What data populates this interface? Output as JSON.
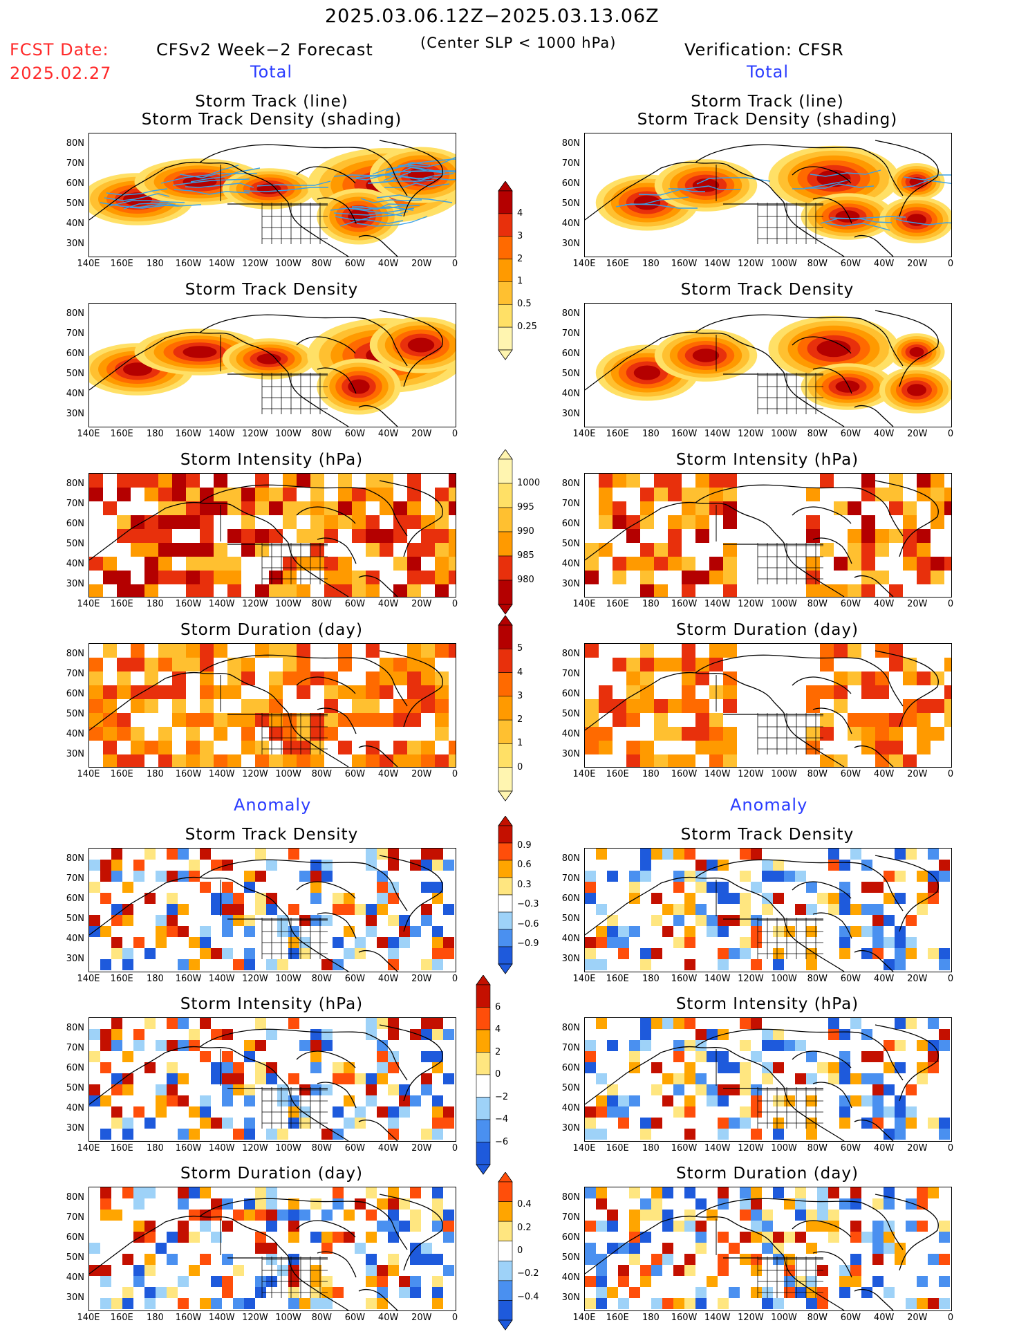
{
  "header": {
    "period": "2025.03.06.12Z−2025.03.13.06Z",
    "fcst_label": "FCST Date:",
    "fcst_date": "2025.02.27",
    "forecast_title": "CFSv2 Week−2 Forecast",
    "condition": "(Center SLP < 1000 hPa)",
    "verification_title": "Verification: CFSR",
    "total_label": "Total",
    "anomaly_label": "Anomaly"
  },
  "panel_titles": {
    "track_line": "Storm Track (line)",
    "track_density_shading": "Storm Track Density (shading)",
    "track_density": "Storm Track Density",
    "intensity": "Storm Intensity (hPa)",
    "duration": "Storm Duration (day)"
  },
  "axes": {
    "lat_ticks": [
      "80N",
      "70N",
      "60N",
      "50N",
      "40N",
      "30N"
    ],
    "lon_ticks": [
      "140E",
      "160E",
      "180",
      "160W",
      "140W",
      "120W",
      "100W",
      "80W",
      "60W",
      "40W",
      "20W",
      "0"
    ]
  },
  "colorbars": {
    "density": [
      "4",
      "3",
      "2",
      "1",
      "0.5",
      "0.25"
    ],
    "intensity": [
      "1000",
      "995",
      "990",
      "985",
      "980"
    ],
    "duration": [
      "5",
      "4",
      "3",
      "2",
      "1",
      "0"
    ],
    "density_anom": [
      "0.9",
      "0.6",
      "0.3",
      "−0.3",
      "−0.6",
      "−0.9"
    ],
    "intensity_anom": [
      "6",
      "4",
      "2",
      "0",
      "−2",
      "−4",
      "−6"
    ],
    "duration_anom": [
      "0.4",
      "0.2",
      "0",
      "−0.2",
      "−0.4"
    ]
  },
  "colors": {
    "warm": [
      "#fff5b0",
      "#ffe066",
      "#ffc030",
      "#ff9a00",
      "#ff6a00",
      "#e8300c",
      "#b40000"
    ],
    "anom": [
      "#1e5adc",
      "#4a90f0",
      "#9ed2f8",
      "#ffffff",
      "#ffe680",
      "#ffa500",
      "#ff4e0a",
      "#c41000"
    ],
    "track_line": "#3aa0e6"
  }
}
